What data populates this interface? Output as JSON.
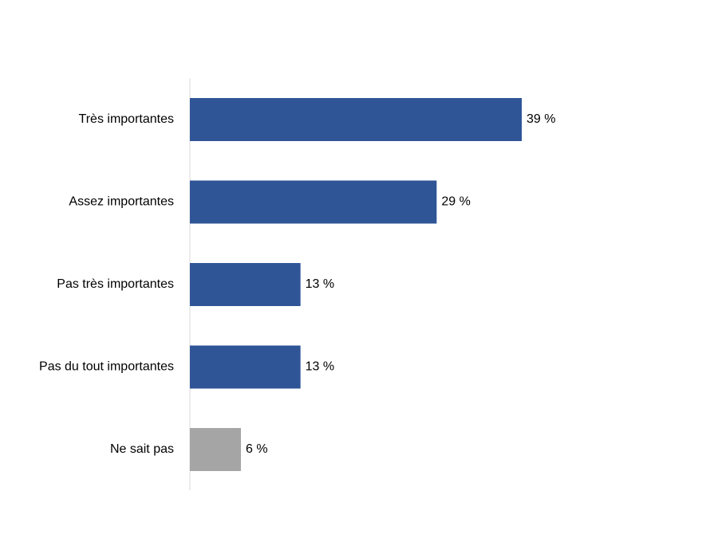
{
  "chart_data": {
    "type": "bar",
    "orientation": "horizontal",
    "categories": [
      "Très importantes",
      "Assez importantes",
      "Pas très importantes",
      "Pas du tout importantes",
      "Ne sait pas"
    ],
    "values": [
      39,
      29,
      13,
      13,
      6
    ],
    "data_labels": [
      "39 %",
      "29 %",
      "13 %",
      "13 %",
      "6 %"
    ],
    "bar_colors": [
      "#2F5597",
      "#2F5597",
      "#2F5597",
      "#2F5597",
      "#A5A5A5"
    ],
    "axis_color": "#D9D9D9",
    "title": "",
    "xlabel": "",
    "ylabel": "",
    "xlim": [
      0,
      39
    ],
    "grid": false,
    "legend": "none"
  }
}
